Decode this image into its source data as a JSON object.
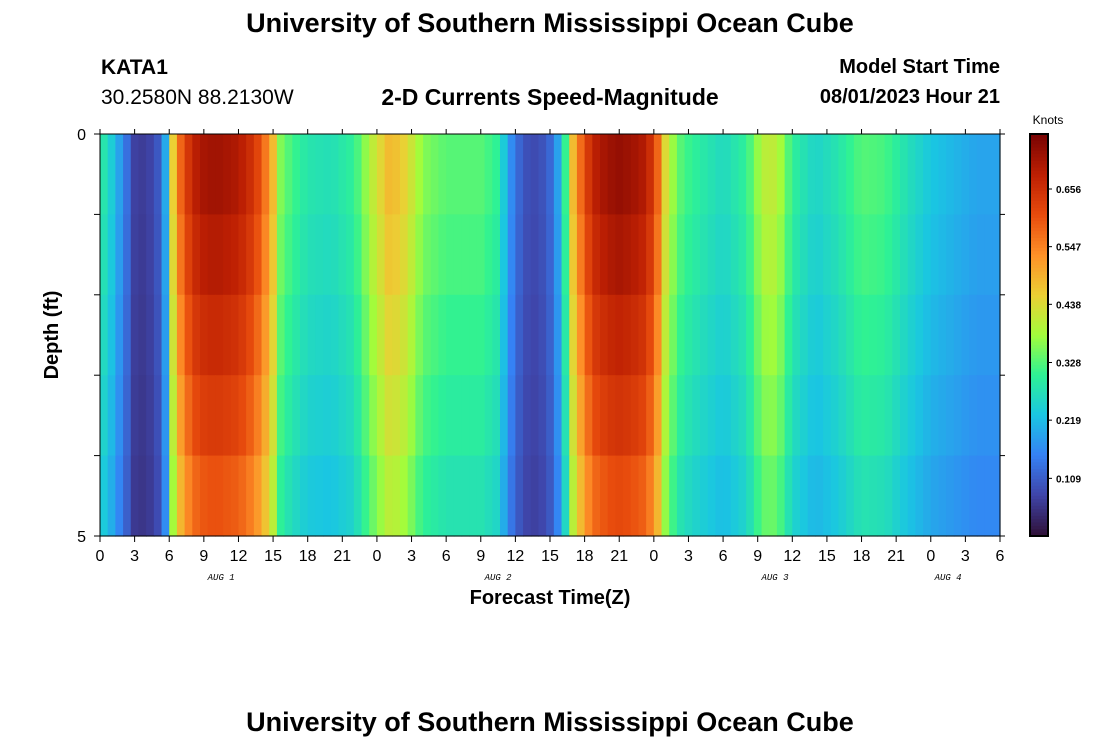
{
  "header": {
    "title": "University of Southern Mississippi Ocean Cube",
    "station": "KATA1",
    "coords": "30.2580N  88.2130W",
    "subtitle": "2-D Currents Speed-Magnitude",
    "start_label": "Model Start Time",
    "start_value": "08/01/2023 Hour 21"
  },
  "footer": {
    "title": "University of Southern Mississippi Ocean Cube"
  },
  "chart_data": {
    "type": "heatmap",
    "title": "2-D Currents Speed-Magnitude",
    "xlabel": "Forecast Time(Z)",
    "ylabel": "Depth (ft)",
    "colorbar_label": "Knots",
    "colorbar_ticks": [
      "0.109",
      "0.219",
      "0.328",
      "0.438",
      "0.547",
      "0.656"
    ],
    "colorbar_values": [
      0.109,
      0.219,
      0.328,
      0.438,
      0.547,
      0.656
    ],
    "color_range": [
      0.0,
      0.76
    ],
    "x_range_hours": [
      0,
      78
    ],
    "x_tick_labels": [
      "0",
      "3",
      "6",
      "9",
      "12",
      "15",
      "18",
      "21",
      "0",
      "3",
      "6",
      "9",
      "12",
      "15",
      "18",
      "21",
      "0",
      "3",
      "6",
      "9",
      "12",
      "15",
      "18",
      "21",
      "0",
      "3",
      "6"
    ],
    "day_labels": [
      {
        "label": "AUG 1",
        "hour": 10.5
      },
      {
        "label": "AUG 2",
        "hour": 34.5
      },
      {
        "label": "AUG 3",
        "hour": 58.5
      },
      {
        "label": "AUG 4",
        "hour": 73.5
      }
    ],
    "y_range_ft": [
      0,
      5
    ],
    "y_tick_labels": [
      "0",
      "5"
    ],
    "depth_levels": 5,
    "time_profile_knots": [
      [
        0,
        0.3
      ],
      [
        1,
        0.24
      ],
      [
        2,
        0.16
      ],
      [
        3,
        0.07
      ],
      [
        4,
        0.06
      ],
      [
        5,
        0.1
      ],
      [
        5.7,
        0.2
      ],
      [
        6.3,
        0.45
      ],
      [
        7,
        0.58
      ],
      [
        8,
        0.68
      ],
      [
        9,
        0.71
      ],
      [
        10,
        0.72
      ],
      [
        11,
        0.71
      ],
      [
        12,
        0.7
      ],
      [
        13,
        0.66
      ],
      [
        14,
        0.6
      ],
      [
        15,
        0.48
      ],
      [
        15.6,
        0.36
      ],
      [
        16.5,
        0.32
      ],
      [
        18,
        0.28
      ],
      [
        20,
        0.27
      ],
      [
        22,
        0.3
      ],
      [
        23.5,
        0.4
      ],
      [
        25,
        0.48
      ],
      [
        26,
        0.47
      ],
      [
        27,
        0.42
      ],
      [
        28,
        0.36
      ],
      [
        30,
        0.33
      ],
      [
        33,
        0.33
      ],
      [
        34.5,
        0.3
      ],
      [
        35.3,
        0.2
      ],
      [
        36,
        0.13
      ],
      [
        37,
        0.09
      ],
      [
        38,
        0.08
      ],
      [
        39,
        0.12
      ],
      [
        40,
        0.22
      ],
      [
        41,
        0.48
      ],
      [
        42,
        0.62
      ],
      [
        43,
        0.69
      ],
      [
        44,
        0.72
      ],
      [
        45,
        0.73
      ],
      [
        46,
        0.72
      ],
      [
        47,
        0.7
      ],
      [
        48,
        0.64
      ],
      [
        48.5,
        0.55
      ],
      [
        49,
        0.44
      ],
      [
        50,
        0.34
      ],
      [
        51,
        0.31
      ],
      [
        52,
        0.29
      ],
      [
        54,
        0.26
      ],
      [
        56,
        0.3
      ],
      [
        57,
        0.37
      ],
      [
        58,
        0.42
      ],
      [
        59,
        0.38
      ],
      [
        60,
        0.3
      ],
      [
        62,
        0.25
      ],
      [
        64,
        0.28
      ],
      [
        66,
        0.33
      ],
      [
        68,
        0.32
      ],
      [
        70,
        0.27
      ],
      [
        72,
        0.23
      ],
      [
        74,
        0.21
      ],
      [
        76,
        0.19
      ],
      [
        78,
        0.19
      ]
    ],
    "depth_factors": [
      1.0,
      0.97,
      0.93,
      0.89,
      0.84
    ]
  }
}
